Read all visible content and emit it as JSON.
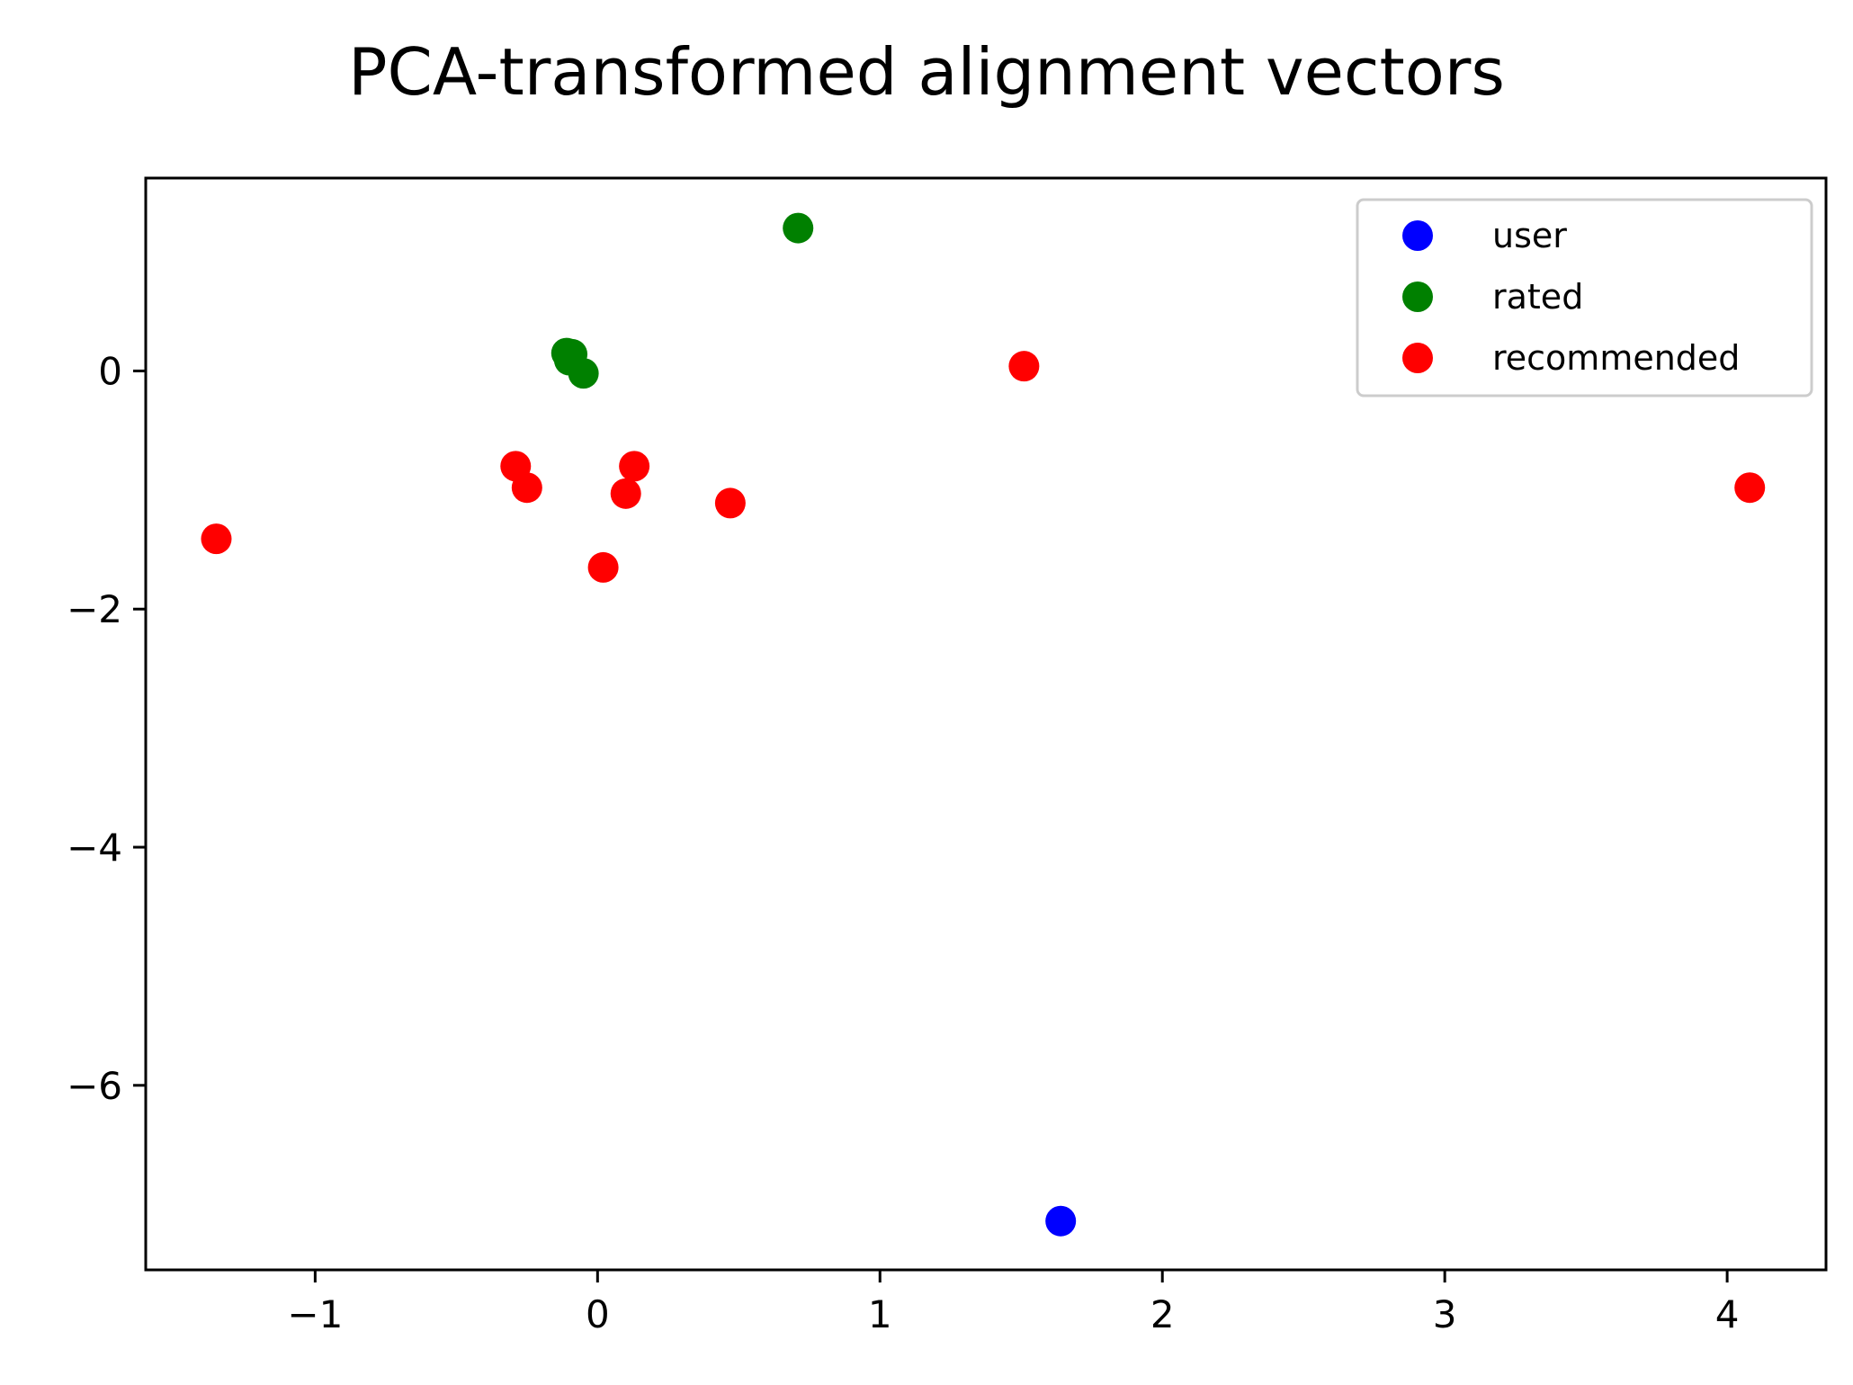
{
  "chart_data": {
    "type": "scatter",
    "title": "PCA-transformed alignment vectors",
    "xlabel": "",
    "ylabel": "",
    "xlim": [
      -1.6,
      4.35
    ],
    "ylim": [
      -7.55,
      1.62
    ],
    "x_ticks": [
      {
        "value": -1,
        "label": "−1"
      },
      {
        "value": 0,
        "label": "0"
      },
      {
        "value": 1,
        "label": "1"
      },
      {
        "value": 2,
        "label": "2"
      },
      {
        "value": 3,
        "label": "3"
      },
      {
        "value": 4,
        "label": "4"
      }
    ],
    "y_ticks": [
      {
        "value": 0,
        "label": "0"
      },
      {
        "value": -2,
        "label": "−2"
      },
      {
        "value": -4,
        "label": "−4"
      },
      {
        "value": -6,
        "label": "−6"
      }
    ],
    "grid": false,
    "legend_position": "top-right",
    "series": [
      {
        "name": "user",
        "color": "#0000ff",
        "points": [
          {
            "x": 1.64,
            "y": -7.14
          }
        ]
      },
      {
        "name": "rated",
        "color": "#008000",
        "points": [
          {
            "x": 0.71,
            "y": 1.2
          },
          {
            "x": -0.11,
            "y": 0.15
          },
          {
            "x": -0.09,
            "y": 0.14
          },
          {
            "x": -0.1,
            "y": 0.09
          },
          {
            "x": -0.05,
            "y": -0.02
          }
        ]
      },
      {
        "name": "recommended",
        "color": "#ff0000",
        "points": [
          {
            "x": 1.51,
            "y": 0.04
          },
          {
            "x": 4.08,
            "y": -0.98
          },
          {
            "x": -1.35,
            "y": -1.41
          },
          {
            "x": -0.29,
            "y": -0.8
          },
          {
            "x": -0.25,
            "y": -0.98
          },
          {
            "x": 0.13,
            "y": -0.8
          },
          {
            "x": 0.1,
            "y": -1.03
          },
          {
            "x": 0.47,
            "y": -1.11
          },
          {
            "x": 0.02,
            "y": -1.65
          }
        ]
      }
    ]
  }
}
